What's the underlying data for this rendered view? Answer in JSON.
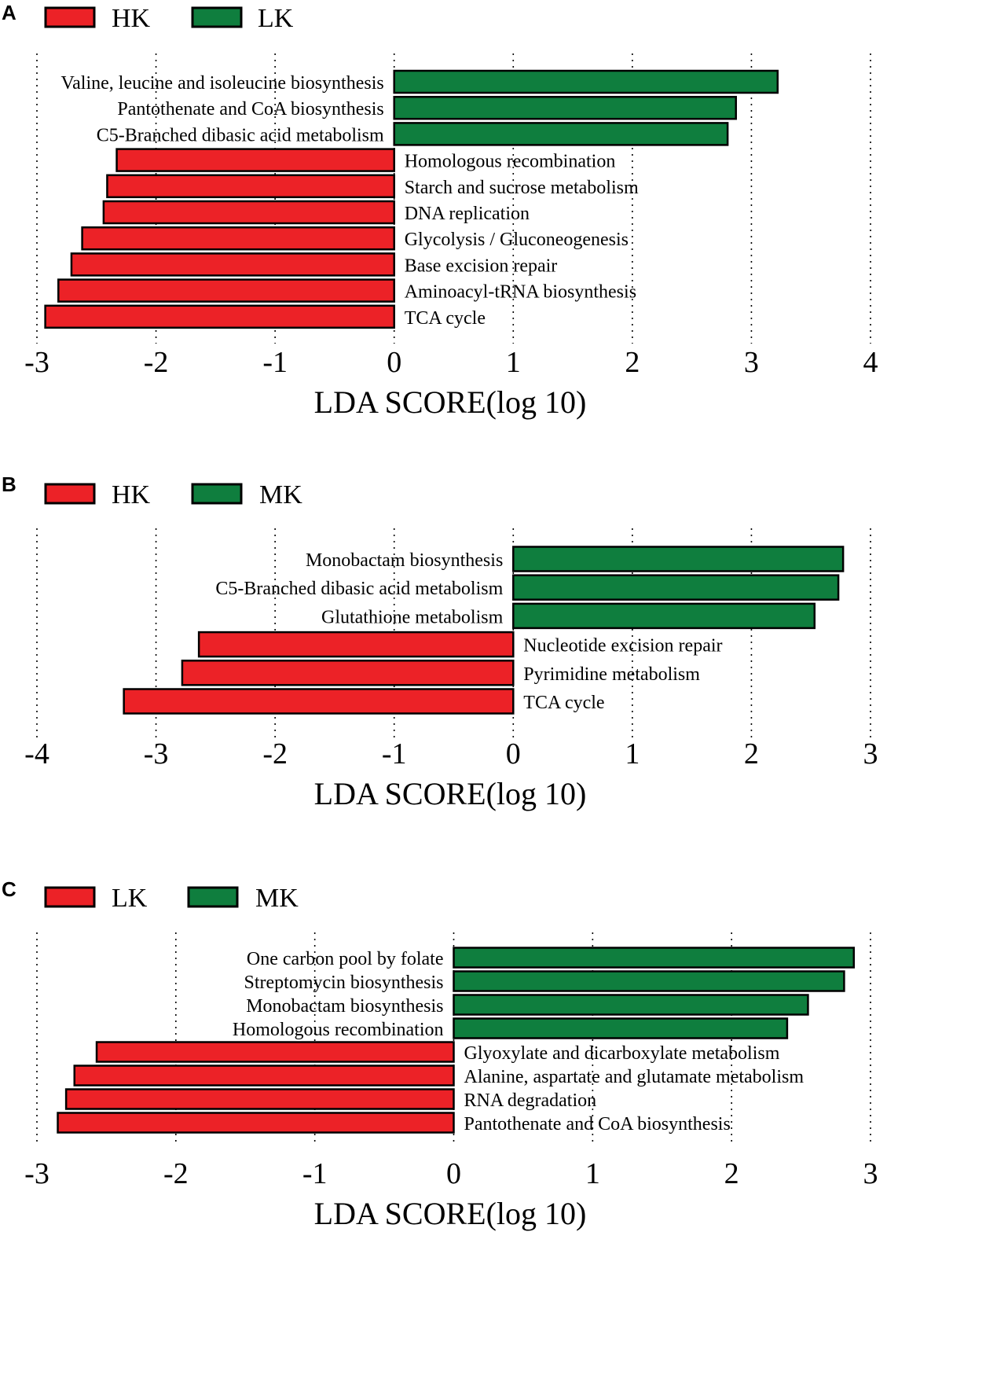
{
  "colors": {
    "group1": "#ec2227",
    "group2": "#0f7e3e",
    "edge": "#000000"
  },
  "chart_data": [
    {
      "panel": "A",
      "type": "bar",
      "orientation": "horizontal",
      "legend": [
        "HK",
        "LK"
      ],
      "xlabel": "LDA SCORE(log 10)",
      "xlim": [
        -3,
        4
      ],
      "xticks": [
        -3,
        -2,
        -1,
        0,
        1,
        2,
        3,
        4
      ],
      "bars": [
        {
          "label": "Valine, leucine and isoleucine biosynthesis",
          "value": 3.22,
          "group": "LK"
        },
        {
          "label": "Pantothenate and CoA biosynthesis",
          "value": 2.87,
          "group": "LK"
        },
        {
          "label": "C5-Branched dibasic acid metabolism",
          "value": 2.8,
          "group": "LK"
        },
        {
          "label": "Homologous recombination",
          "value": -2.33,
          "group": "HK"
        },
        {
          "label": "Starch and sucrose metabolism",
          "value": -2.41,
          "group": "HK"
        },
        {
          "label": "DNA replication",
          "value": -2.44,
          "group": "HK"
        },
        {
          "label": "Glycolysis / Gluconeogenesis",
          "value": -2.62,
          "group": "HK"
        },
        {
          "label": "Base excision repair",
          "value": -2.71,
          "group": "HK"
        },
        {
          "label": "Aminoacyl-tRNA biosynthesis",
          "value": -2.82,
          "group": "HK"
        },
        {
          "label": "TCA cycle",
          "value": -2.93,
          "group": "HK"
        }
      ]
    },
    {
      "panel": "B",
      "type": "bar",
      "orientation": "horizontal",
      "legend": [
        "HK",
        "MK"
      ],
      "xlabel": "LDA SCORE(log 10)",
      "xlim": [
        -4,
        3
      ],
      "xticks": [
        -4,
        -3,
        -2,
        -1,
        0,
        1,
        2,
        3
      ],
      "bars": [
        {
          "label": "Monobactam biosynthesis",
          "value": 2.77,
          "group": "MK"
        },
        {
          "label": "C5-Branched dibasic acid metabolism",
          "value": 2.73,
          "group": "MK"
        },
        {
          "label": "Glutathione metabolism",
          "value": 2.53,
          "group": "MK"
        },
        {
          "label": "Nucleotide excision repair",
          "value": -2.64,
          "group": "HK"
        },
        {
          "label": "Pyrimidine metabolism",
          "value": -2.78,
          "group": "HK"
        },
        {
          "label": "TCA cycle",
          "value": -3.27,
          "group": "HK"
        }
      ]
    },
    {
      "panel": "C",
      "type": "bar",
      "orientation": "horizontal",
      "legend": [
        "LK",
        "MK"
      ],
      "xlabel": "LDA SCORE(log 10)",
      "xlim": [
        -3,
        3
      ],
      "xticks": [
        -3,
        -2,
        -1,
        0,
        1,
        2,
        3
      ],
      "bars": [
        {
          "label": "One carbon pool by folate",
          "value": 2.88,
          "group": "MK"
        },
        {
          "label": "Streptomycin biosynthesis",
          "value": 2.81,
          "group": "MK"
        },
        {
          "label": "Monobactam biosynthesis",
          "value": 2.55,
          "group": "MK"
        },
        {
          "label": "Homologous recombination",
          "value": 2.4,
          "group": "MK"
        },
        {
          "label": "Glyoxylate and dicarboxylate metabolism",
          "value": -2.57,
          "group": "LK"
        },
        {
          "label": "Alanine, aspartate and glutamate metabolism",
          "value": -2.73,
          "group": "LK"
        },
        {
          "label": "RNA degradation",
          "value": -2.79,
          "group": "LK"
        },
        {
          "label": "Pantothenate and CoA biosynthesis",
          "value": -2.85,
          "group": "LK"
        }
      ]
    }
  ]
}
